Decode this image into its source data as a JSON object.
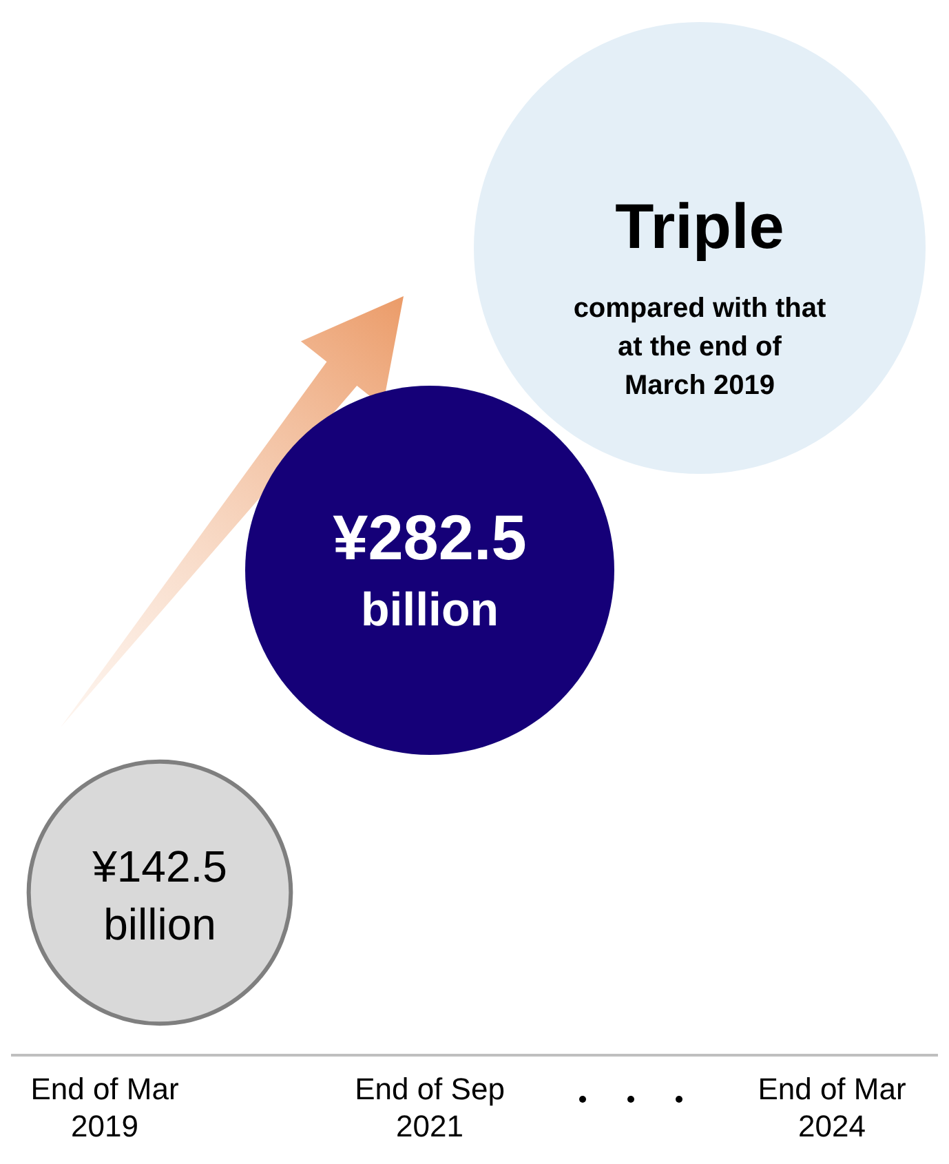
{
  "chart_data": {
    "type": "other",
    "categories": [
      "End of Mar 2019",
      "End of Sep 2021",
      "End of Mar 2024"
    ],
    "values": [
      142.5,
      282.5,
      null
    ],
    "colors": [
      "#d9d9d9",
      "#150078",
      "#e4eff7"
    ],
    "value_labels": [
      "¥142.5 billion",
      "¥282.5 billion",
      "Triple"
    ],
    "annotations": [
      "compared with that at the end of March 2019"
    ]
  }
}
